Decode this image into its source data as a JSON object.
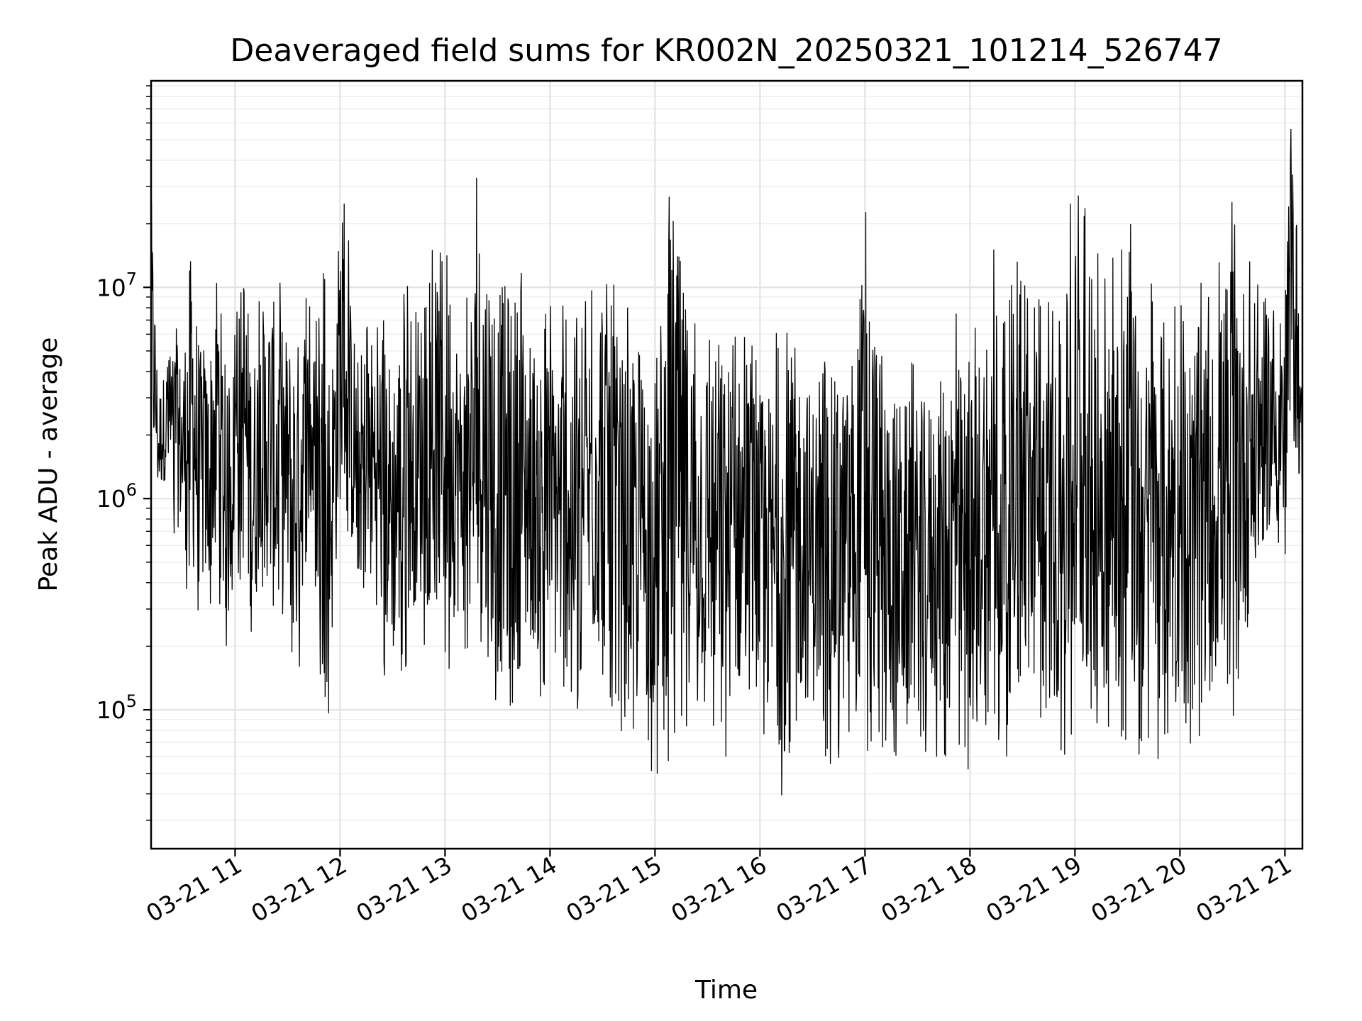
{
  "chart_data": {
    "type": "line",
    "title": "Deaveraged field sums for KR002N_20250321_101214_526747",
    "xlabel": "Time",
    "ylabel": "Peak ADU - average",
    "yscale": "log",
    "ylim": [
      22000,
      95000000
    ],
    "xlim": [
      "2025-03-21 10:12",
      "2025-03-21 21:10"
    ],
    "x_ticks": [
      {
        "value": "2025-03-21 11:00",
        "label": "03-21 11"
      },
      {
        "value": "2025-03-21 12:00",
        "label": "03-21 12"
      },
      {
        "value": "2025-03-21 13:00",
        "label": "03-21 13"
      },
      {
        "value": "2025-03-21 14:00",
        "label": "03-21 14"
      },
      {
        "value": "2025-03-21 15:00",
        "label": "03-21 15"
      },
      {
        "value": "2025-03-21 16:00",
        "label": "03-21 16"
      },
      {
        "value": "2025-03-21 17:00",
        "label": "03-21 17"
      },
      {
        "value": "2025-03-21 18:00",
        "label": "03-21 18"
      },
      {
        "value": "2025-03-21 19:00",
        "label": "03-21 19"
      },
      {
        "value": "2025-03-21 20:00",
        "label": "03-21 20"
      },
      {
        "value": "2025-03-21 21:00",
        "label": "03-21 21"
      }
    ],
    "y_ticks": [
      {
        "value": 100000,
        "base": "10",
        "exp": "5"
      },
      {
        "value": 1000000,
        "base": "10",
        "exp": "6"
      },
      {
        "value": 10000000,
        "base": "10",
        "exp": "7"
      }
    ],
    "grid": true,
    "series": [
      {
        "color": "#000000",
        "x": [
          "2025-03-21 10:12",
          "2025-03-21 10:14",
          "2025-03-21 10:16",
          "2025-03-21 10:20",
          "2025-03-21 10:25",
          "2025-03-21 10:30",
          "2025-03-21 10:35",
          "2025-03-21 10:40",
          "2025-03-21 10:45",
          "2025-03-21 10:50",
          "2025-03-21 10:55",
          "2025-03-21 11:00",
          "2025-03-21 11:05",
          "2025-03-21 11:10",
          "2025-03-21 11:15",
          "2025-03-21 11:20",
          "2025-03-21 11:25",
          "2025-03-21 11:30",
          "2025-03-21 11:35",
          "2025-03-21 11:40",
          "2025-03-21 11:45",
          "2025-03-21 11:50",
          "2025-03-21 11:55",
          "2025-03-21 12:00",
          "2025-03-21 12:10",
          "2025-03-21 12:20",
          "2025-03-21 12:30",
          "2025-03-21 12:40",
          "2025-03-21 12:50",
          "2025-03-21 13:00",
          "2025-03-21 13:10",
          "2025-03-21 13:20",
          "2025-03-21 13:30",
          "2025-03-21 13:40",
          "2025-03-21 13:50",
          "2025-03-21 14:00",
          "2025-03-21 14:10",
          "2025-03-21 14:20",
          "2025-03-21 14:30",
          "2025-03-21 14:40",
          "2025-03-21 14:50",
          "2025-03-21 15:00",
          "2025-03-21 15:10",
          "2025-03-21 15:20",
          "2025-03-21 15:30",
          "2025-03-21 15:40",
          "2025-03-21 15:50",
          "2025-03-21 16:00",
          "2025-03-21 16:10",
          "2025-03-21 16:20",
          "2025-03-21 16:30",
          "2025-03-21 16:40",
          "2025-03-21 16:50",
          "2025-03-21 17:00",
          "2025-03-21 17:10",
          "2025-03-21 17:20",
          "2025-03-21 17:30",
          "2025-03-21 17:40",
          "2025-03-21 17:50",
          "2025-03-21 18:00",
          "2025-03-21 18:10",
          "2025-03-21 18:20",
          "2025-03-21 18:30",
          "2025-03-21 18:40",
          "2025-03-21 18:50",
          "2025-03-21 19:00",
          "2025-03-21 19:10",
          "2025-03-21 19:20",
          "2025-03-21 19:30",
          "2025-03-21 19:40",
          "2025-03-21 19:50",
          "2025-03-21 20:00",
          "2025-03-21 20:10",
          "2025-03-21 20:20",
          "2025-03-21 20:30",
          "2025-03-21 20:40",
          "2025-03-21 20:50",
          "2025-03-21 21:00",
          "2025-03-21 21:03",
          "2025-03-21 21:06",
          "2025-03-21 21:10"
        ],
        "y_high": [
          45000000,
          15000000,
          4000000,
          5000000,
          8500000,
          6000000,
          30000000,
          8000000,
          6500000,
          25000000,
          5000000,
          6500000,
          28000000,
          7500000,
          12000000,
          17000000,
          13000000,
          10000000,
          9500000,
          12500000,
          7000000,
          13000000,
          7500000,
          40000000,
          7000000,
          11000000,
          8000000,
          16000000,
          12000000,
          40000000,
          6500000,
          50000000,
          22000000,
          20000000,
          10000000,
          8500000,
          12000000,
          9000000,
          28000000,
          9000000,
          7500000,
          8000000,
          60000000,
          12000000,
          9000000,
          9000000,
          7000000,
          5500000,
          6500000,
          10000000,
          5500000,
          7000000,
          6500000,
          35000000,
          6500000,
          5500000,
          5000000,
          5500000,
          10000000,
          6000000,
          17000000,
          22000000,
          11000000,
          12000000,
          7500000,
          45000000,
          24000000,
          12000000,
          28000000,
          9000000,
          15000000,
          8000000,
          13000000,
          9500000,
          40000000,
          15000000,
          13000000,
          8000000,
          70000000,
          60000000,
          2500000
        ],
        "y_low": [
          1200000,
          900000,
          800000,
          1000000,
          600000,
          450000,
          250000,
          230000,
          240000,
          400000,
          105000,
          600000,
          250000,
          120000,
          400000,
          180000,
          140000,
          190000,
          100000,
          300000,
          450000,
          75000,
          105000,
          550000,
          300000,
          200000,
          95000,
          180000,
          200000,
          130000,
          180000,
          95000,
          70000,
          70000,
          120000,
          90000,
          80000,
          100000,
          90000,
          80000,
          70000,
          47000,
          55000,
          70000,
          75000,
          55000,
          70000,
          70000,
          33000,
          60000,
          60000,
          55000,
          55000,
          60000,
          55000,
          45000,
          55000,
          60000,
          45000,
          50000,
          60000,
          55000,
          65000,
          60000,
          55000,
          60000,
          60000,
          60000,
          55000,
          60000,
          55000,
          70000,
          60000,
          75000,
          90000,
          140000,
          500000,
          450000,
          900000,
          1000000,
          800000
        ]
      }
    ]
  }
}
